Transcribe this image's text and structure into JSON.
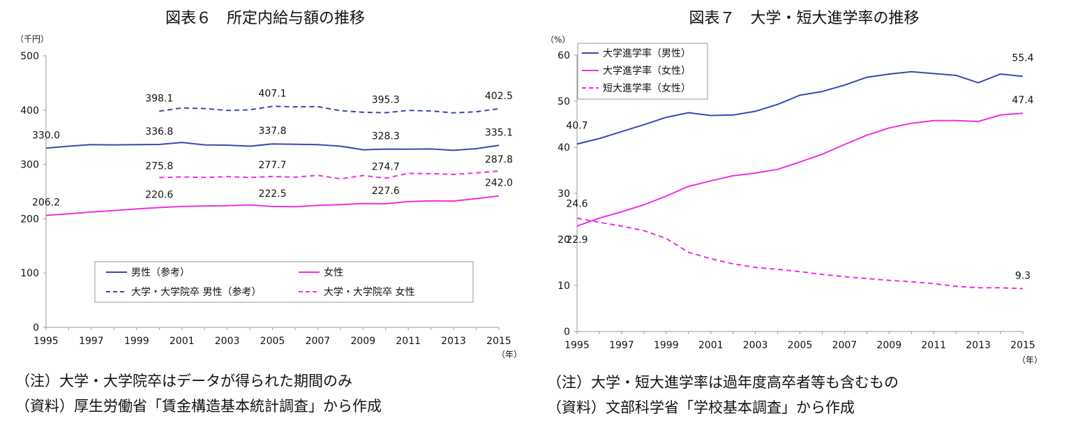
{
  "chart_data": [
    {
      "type": "line",
      "title": "図表６　所定内給与額の推移",
      "ylabel": "（千円）",
      "xlabel": "（年）",
      "ylim": [
        0,
        500
      ],
      "yticks": [
        "0",
        "100",
        "200",
        "300",
        "400",
        "500"
      ],
      "xlim": [
        1995,
        2015
      ],
      "xticks": [
        "1995",
        "1997",
        "1999",
        "2001",
        "2003",
        "2005",
        "2007",
        "2009",
        "2011",
        "2013",
        "2015"
      ],
      "legend_position": "bottom-center",
      "series": [
        {
          "name": "男性（参考）",
          "color": "#3848b4",
          "dash": "solid",
          "x": [
            1995,
            1996,
            1997,
            1998,
            1999,
            2000,
            2001,
            2002,
            2003,
            2004,
            2005,
            2006,
            2007,
            2008,
            2009,
            2010,
            2011,
            2012,
            2013,
            2014,
            2015
          ],
          "values": [
            330.0,
            333.5,
            336.5,
            336.0,
            336.5,
            336.8,
            340.5,
            336.0,
            335.5,
            333.5,
            337.8,
            337.0,
            336.5,
            333.5,
            327.0,
            328.3,
            328.0,
            328.5,
            326.0,
            329.0,
            335.1
          ],
          "labels": [
            {
              "x": 1995,
              "y": 330.0,
              "text": "330.0"
            },
            {
              "x": 2000,
              "y": 336.8,
              "text": "336.8"
            },
            {
              "x": 2005,
              "y": 337.8,
              "text": "337.8"
            },
            {
              "x": 2010,
              "y": 328.3,
              "text": "328.3"
            },
            {
              "x": 2015,
              "y": 335.1,
              "text": "335.1"
            }
          ]
        },
        {
          "name": "女性",
          "color": "#ee2ee2",
          "dash": "solid",
          "x": [
            1995,
            1996,
            1997,
            1998,
            1999,
            2000,
            2001,
            2002,
            2003,
            2004,
            2005,
            2006,
            2007,
            2008,
            2009,
            2010,
            2011,
            2012,
            2013,
            2014,
            2015
          ],
          "values": [
            206.2,
            209.0,
            212.5,
            215.0,
            218.0,
            220.6,
            222.5,
            223.5,
            224.0,
            225.5,
            222.5,
            222.0,
            224.5,
            226.0,
            228.0,
            227.6,
            231.5,
            233.0,
            232.5,
            237.0,
            242.0
          ],
          "labels": [
            {
              "x": 1995,
              "y": 206.2,
              "text": "206.2"
            },
            {
              "x": 2000,
              "y": 220.6,
              "text": "220.6"
            },
            {
              "x": 2005,
              "y": 222.5,
              "text": "222.5"
            },
            {
              "x": 2010,
              "y": 227.6,
              "text": "227.6"
            },
            {
              "x": 2015,
              "y": 242.0,
              "text": "242.0"
            }
          ]
        },
        {
          "name": "大学・大学院卒 男性（参考）",
          "color": "#3848b4",
          "dash": "dashed",
          "x": [
            2000,
            2001,
            2002,
            2003,
            2004,
            2005,
            2006,
            2007,
            2008,
            2009,
            2010,
            2011,
            2012,
            2013,
            2014,
            2015
          ],
          "values": [
            398.1,
            404.0,
            403.0,
            399.5,
            400.5,
            407.1,
            406.0,
            406.5,
            399.0,
            396.0,
            395.3,
            399.5,
            398.5,
            395.0,
            397.0,
            402.5
          ],
          "labels": [
            {
              "x": 2000,
              "y": 398.1,
              "text": "398.1"
            },
            {
              "x": 2005,
              "y": 407.1,
              "text": "407.1"
            },
            {
              "x": 2010,
              "y": 395.3,
              "text": "395.3"
            },
            {
              "x": 2015,
              "y": 402.5,
              "text": "402.5"
            }
          ]
        },
        {
          "name": "大学・大学院卒 女性",
          "color": "#ee2ee2",
          "dash": "dashed",
          "x": [
            2000,
            2001,
            2002,
            2003,
            2004,
            2005,
            2006,
            2007,
            2008,
            2009,
            2010,
            2011,
            2012,
            2013,
            2014,
            2015
          ],
          "values": [
            275.8,
            277.0,
            276.0,
            277.5,
            276.0,
            277.7,
            276.5,
            280.0,
            273.5,
            279.5,
            274.7,
            283.5,
            283.0,
            281.5,
            284.5,
            287.8
          ],
          "labels": [
            {
              "x": 2000,
              "y": 275.8,
              "text": "275.8"
            },
            {
              "x": 2005,
              "y": 277.7,
              "text": "277.7"
            },
            {
              "x": 2010,
              "y": 274.7,
              "text": "274.7"
            },
            {
              "x": 2015,
              "y": 287.8,
              "text": "287.8"
            }
          ]
        }
      ],
      "notes": [
        "（注）大学・大学院卒はデータが得られた期間のみ",
        "（資料）厚生労働省「賃金構造基本統計調査」から作成"
      ]
    },
    {
      "type": "line",
      "title": "図表７　大学・短大進学率の推移",
      "ylabel": "（%）",
      "xlabel": "（年）",
      "ylim": [
        0,
        60
      ],
      "yticks": [
        "0",
        "10",
        "20",
        "30",
        "40",
        "50",
        "60"
      ],
      "xlim": [
        1995,
        2015
      ],
      "xticks": [
        "1995",
        "1997",
        "1999",
        "2001",
        "2003",
        "2005",
        "2007",
        "2009",
        "2011",
        "2013",
        "2015"
      ],
      "legend_position": "top-left",
      "series": [
        {
          "name": "大学進学率（男性）",
          "color": "#3848b4",
          "dash": "solid",
          "x": [
            1995,
            1996,
            1997,
            1998,
            1999,
            2000,
            2001,
            2002,
            2003,
            2004,
            2005,
            2006,
            2007,
            2008,
            2009,
            2010,
            2011,
            2012,
            2013,
            2014,
            2015
          ],
          "values": [
            40.7,
            41.9,
            43.4,
            44.9,
            46.5,
            47.5,
            46.9,
            47.0,
            47.8,
            49.3,
            51.3,
            52.1,
            53.5,
            55.2,
            55.9,
            56.4,
            56.0,
            55.6,
            54.0,
            55.9,
            55.4
          ],
          "labels": [
            {
              "x": 1995,
              "y": 40.7,
              "text": "40.7"
            },
            {
              "x": 2015,
              "y": 55.4,
              "text": "55.4"
            }
          ]
        },
        {
          "name": "大学進学率（女性）",
          "color": "#ee2ee2",
          "dash": "solid",
          "x": [
            1995,
            1996,
            1997,
            1998,
            1999,
            2000,
            2001,
            2002,
            2003,
            2004,
            2005,
            2006,
            2007,
            2008,
            2009,
            2010,
            2011,
            2012,
            2013,
            2014,
            2015
          ],
          "values": [
            22.9,
            24.6,
            26.0,
            27.5,
            29.4,
            31.5,
            32.7,
            33.8,
            34.4,
            35.2,
            36.8,
            38.5,
            40.6,
            42.6,
            44.2,
            45.2,
            45.8,
            45.8,
            45.6,
            47.0,
            47.4
          ],
          "labels": [
            {
              "x": 1995,
              "y": 22.9,
              "text": "22.9"
            },
            {
              "x": 2015,
              "y": 47.4,
              "text": "47.4"
            }
          ]
        },
        {
          "name": "短大進学率（女性）",
          "color": "#ee2ee2",
          "dash": "dashed",
          "x": [
            1995,
            1996,
            1997,
            1998,
            1999,
            2000,
            2001,
            2002,
            2003,
            2004,
            2005,
            2006,
            2007,
            2008,
            2009,
            2010,
            2011,
            2012,
            2013,
            2014,
            2015
          ],
          "values": [
            24.6,
            23.7,
            22.9,
            21.9,
            20.2,
            17.2,
            15.8,
            14.7,
            13.9,
            13.5,
            13.0,
            12.4,
            11.9,
            11.5,
            11.1,
            10.8,
            10.4,
            9.8,
            9.5,
            9.5,
            9.3
          ],
          "labels": [
            {
              "x": 1995,
              "y": 24.6,
              "text": "24.6"
            },
            {
              "x": 2015,
              "y": 9.3,
              "text": "9.3"
            }
          ]
        }
      ],
      "notes": [
        "（注）大学・短大進学率は過年度高卒者等も含むもの",
        "（資料）文部科学省「学校基本調査」から作成"
      ]
    }
  ]
}
